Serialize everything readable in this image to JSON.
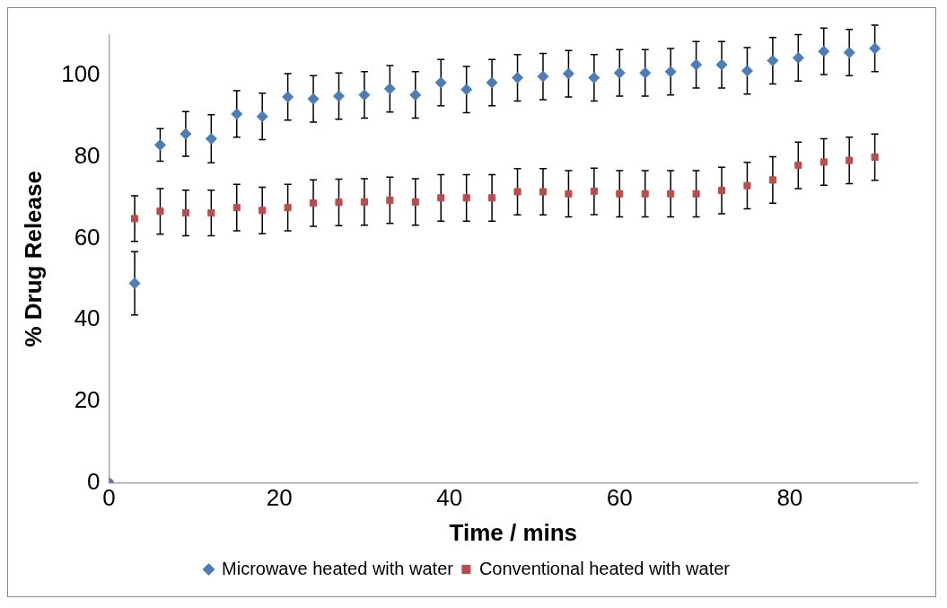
{
  "chart_data": {
    "type": "scatter",
    "xlabel": "Time / mins",
    "ylabel": "% Drug Release",
    "x": [
      0,
      3,
      6,
      9,
      12,
      15,
      18,
      21,
      24,
      27,
      30,
      33,
      36,
      39,
      42,
      45,
      48,
      51,
      54,
      57,
      60,
      63,
      66,
      69,
      72,
      75,
      78,
      81,
      84,
      87,
      90
    ],
    "series": [
      {
        "name": "Microwave heated with water",
        "color": "#4a7ebb",
        "marker": "diamond",
        "values": [
          0,
          49,
          83,
          85.7,
          84.5,
          90.6,
          90,
          94.8,
          94.3,
          95,
          95.3,
          96.8,
          95.3,
          98.3,
          96.6,
          98.3,
          99.5,
          99.8,
          100.5,
          99.5,
          100.7,
          100.7,
          101,
          102.7,
          102.7,
          101.2,
          103.7,
          104.4,
          106,
          105.7,
          106.7
        ],
        "errors": [
          null,
          7.8,
          4,
          5.5,
          5.9,
          5.7,
          5.7,
          5.7,
          5.7,
          5.7,
          5.7,
          5.7,
          5.7,
          5.7,
          5.7,
          5.7,
          5.7,
          5.7,
          5.7,
          5.7,
          5.7,
          5.7,
          5.7,
          5.7,
          5.7,
          5.7,
          5.7,
          5.7,
          5.7,
          5.7,
          5.7
        ]
      },
      {
        "name": "Conventional heated with water",
        "color": "#be4b48",
        "marker": "square",
        "values": [
          0,
          64.9,
          66.7,
          66.3,
          66.3,
          67.6,
          66.9,
          67.6,
          68.7,
          68.9,
          69,
          69.4,
          69,
          70,
          70,
          70,
          71.5,
          71.5,
          71,
          71.6,
          71,
          71,
          71,
          71,
          71.8,
          73,
          74.4,
          78,
          78.8,
          79.2,
          80
        ],
        "errors": [
          null,
          5.6,
          5.6,
          5.6,
          5.6,
          5.7,
          5.7,
          5.7,
          5.7,
          5.7,
          5.7,
          5.7,
          5.7,
          5.7,
          5.7,
          5.7,
          5.7,
          5.7,
          5.7,
          5.7,
          5.7,
          5.7,
          5.7,
          5.7,
          5.7,
          5.7,
          5.7,
          5.7,
          5.7,
          5.7,
          5.7
        ]
      }
    ],
    "xlim": [
      0,
      95
    ],
    "xticks": [
      0,
      20,
      40,
      60,
      80
    ],
    "ylim": [
      0,
      110
    ],
    "yticks": [
      0,
      20,
      40,
      60,
      80,
      100
    ],
    "grid": false,
    "legend": "bottom"
  }
}
